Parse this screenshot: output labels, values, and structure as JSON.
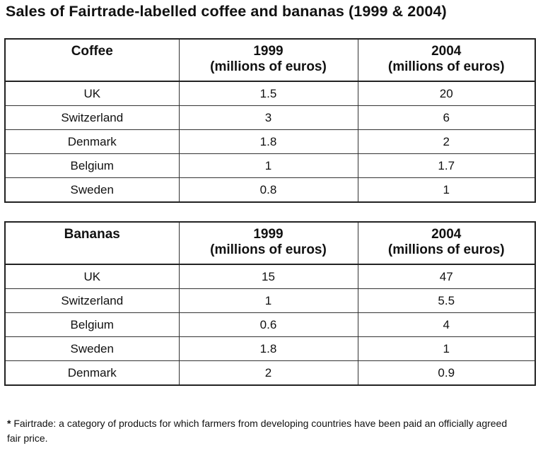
{
  "title": "Sales of Fairtrade-labelled coffee and bananas (1999 & 2004)",
  "chart_data": [
    {
      "type": "table",
      "columns": [
        "Coffee",
        "1999 (millions of euros)",
        "2004 (millions of euros)"
      ],
      "header": {
        "product": "Coffee",
        "year1": "1999",
        "year2": "2004",
        "unit": "(millions of euros)"
      },
      "rows": [
        [
          "UK",
          "1.5",
          "20"
        ],
        [
          "Switzerland",
          "3",
          "6"
        ],
        [
          "Denmark",
          "1.8",
          "2"
        ],
        [
          "Belgium",
          "1",
          "1.7"
        ],
        [
          "Sweden",
          "0.8",
          "1"
        ]
      ]
    },
    {
      "type": "table",
      "columns": [
        "Bananas",
        "1999 (millions of euros)",
        "2004 (millions of euros)"
      ],
      "header": {
        "product": "Bananas",
        "year1": "1999",
        "year2": "2004",
        "unit": "(millions of euros)"
      },
      "rows": [
        [
          "UK",
          "15",
          "47"
        ],
        [
          "Switzerland",
          "1",
          "5.5"
        ],
        [
          "Belgium",
          "0.6",
          "4"
        ],
        [
          "Sweden",
          "1.8",
          "1"
        ],
        [
          "Denmark",
          "2",
          "0.9"
        ]
      ]
    }
  ],
  "footnote": {
    "marker": "*",
    "text": " Fairtrade: a category of products for which farmers from developing countries have been paid an officially agreed fair price."
  }
}
